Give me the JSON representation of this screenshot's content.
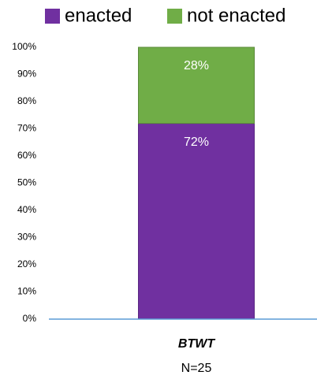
{
  "chart_data": {
    "type": "bar",
    "stacked": true,
    "categories": [
      "BTWT"
    ],
    "category_note": "N=25",
    "series": [
      {
        "name": "enacted",
        "color": "#7030a0",
        "values": [
          72
        ],
        "value_labels": [
          "72%"
        ]
      },
      {
        "name": "not enacted",
        "color": "#70ad47",
        "values": [
          28
        ],
        "value_labels": [
          "28%"
        ]
      }
    ],
    "ylim": [
      0,
      100
    ],
    "yticks": [
      {
        "value": 0,
        "label": "0%"
      },
      {
        "value": 10,
        "label": "10%"
      },
      {
        "value": 20,
        "label": "20%"
      },
      {
        "value": 30,
        "label": "30%"
      },
      {
        "value": 40,
        "label": "40%"
      },
      {
        "value": 50,
        "label": "50%"
      },
      {
        "value": 60,
        "label": "60%"
      },
      {
        "value": 70,
        "label": "70%"
      },
      {
        "value": 80,
        "label": "80%"
      },
      {
        "value": 90,
        "label": "90%"
      },
      {
        "value": 100,
        "label": "100%"
      }
    ],
    "legend": "top",
    "grid": false
  }
}
